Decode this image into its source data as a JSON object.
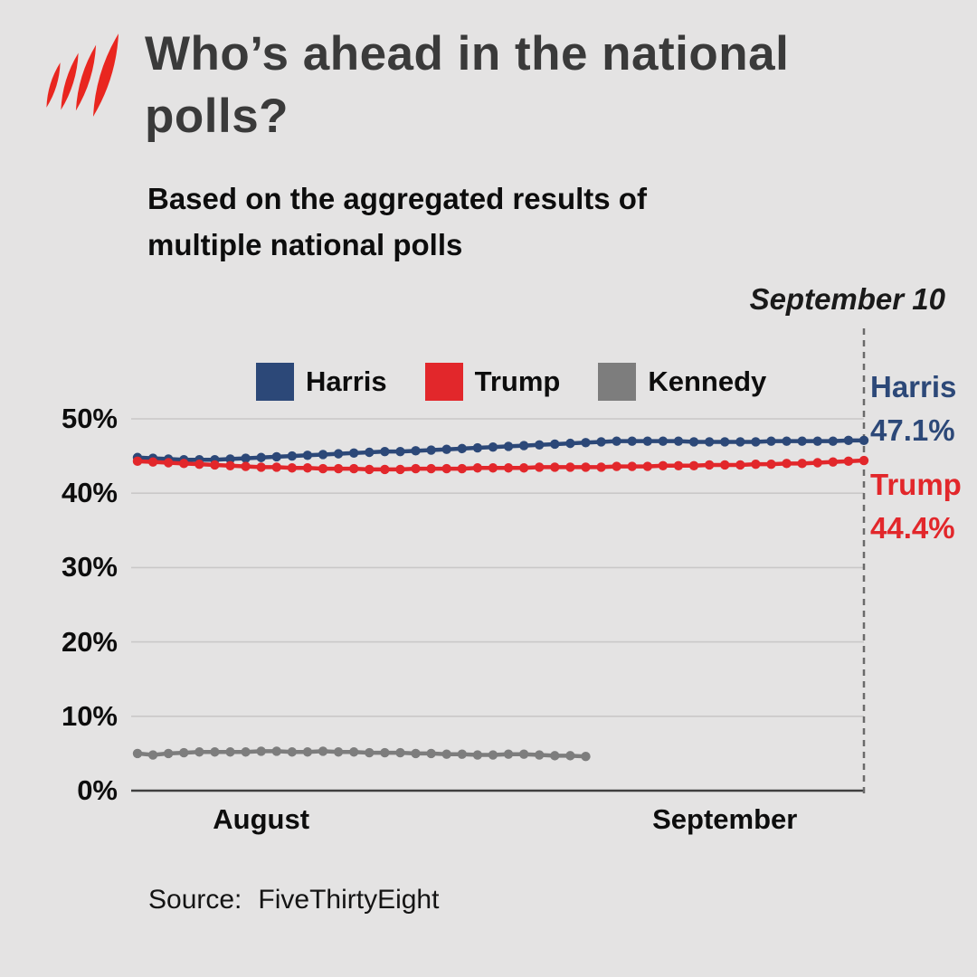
{
  "header": {
    "title": "Who’s ahead in the national polls?",
    "subtitle": "Based on the aggregated results of multiple national polls",
    "logo_color": "#e9261f"
  },
  "date_annotation": "September 10",
  "legend": [
    {
      "label": "Harris",
      "color": "#2c4878"
    },
    {
      "label": "Trump",
      "color": "#e2272b"
    },
    {
      "label": "Kennedy",
      "color": "#7d7d7d"
    }
  ],
  "end_labels": [
    {
      "id": "harris",
      "name": "Harris",
      "value": "47.1%",
      "color": "#2c4878"
    },
    {
      "id": "trump",
      "name": "Trump",
      "value": "44.4%",
      "color": "#e2272b"
    }
  ],
  "source": {
    "label": "Source:",
    "value": "FiveThirtyEight"
  },
  "chart_data": {
    "type": "line",
    "title": "Who’s ahead in the national polls?",
    "subtitle": "Based on the aggregated results of multiple national polls",
    "x_description": "Daily national polling averages, late July (day 0 = July 25) to September 10 (day 47)",
    "x_days_total": 47,
    "ylim": [
      0,
      50
    ],
    "grid": true,
    "legend_position": "top-center",
    "yticks": [
      {
        "value": 50,
        "label": "50%"
      },
      {
        "value": 40,
        "label": "40%"
      },
      {
        "value": 30,
        "label": "30%"
      },
      {
        "value": 20,
        "label": "20%"
      },
      {
        "value": 10,
        "label": "10%"
      },
      {
        "value": 0,
        "label": "0%"
      }
    ],
    "xticks": [
      {
        "day": 8,
        "label": "August"
      },
      {
        "day": 38,
        "label": "September"
      }
    ],
    "end_marker_day": 47,
    "end_marker_label": "September 10",
    "series": [
      {
        "name": "Harris",
        "color": "#2c4878",
        "start_day": 0,
        "end_value_label": "47.1%",
        "values": [
          44.8,
          44.7,
          44.6,
          44.5,
          44.5,
          44.5,
          44.6,
          44.7,
          44.8,
          44.9,
          45.0,
          45.1,
          45.2,
          45.3,
          45.4,
          45.5,
          45.6,
          45.6,
          45.7,
          45.8,
          45.9,
          46.0,
          46.1,
          46.2,
          46.3,
          46.4,
          46.5,
          46.6,
          46.7,
          46.8,
          46.9,
          47.0,
          47.0,
          47.0,
          47.0,
          47.0,
          46.9,
          46.9,
          46.9,
          46.9,
          46.9,
          47.0,
          47.0,
          47.0,
          47.0,
          47.0,
          47.1,
          47.1
        ]
      },
      {
        "name": "Trump",
        "color": "#e2272b",
        "start_day": 0,
        "end_value_label": "44.4%",
        "values": [
          44.3,
          44.2,
          44.1,
          44.0,
          43.9,
          43.8,
          43.7,
          43.6,
          43.5,
          43.5,
          43.4,
          43.4,
          43.3,
          43.3,
          43.3,
          43.2,
          43.2,
          43.2,
          43.3,
          43.3,
          43.3,
          43.3,
          43.4,
          43.4,
          43.4,
          43.4,
          43.5,
          43.5,
          43.5,
          43.5,
          43.5,
          43.6,
          43.6,
          43.6,
          43.7,
          43.7,
          43.7,
          43.8,
          43.8,
          43.8,
          43.9,
          43.9,
          44.0,
          44.0,
          44.1,
          44.2,
          44.3,
          44.4
        ]
      },
      {
        "name": "Kennedy",
        "color": "#7d7d7d",
        "start_day": 0,
        "values": [
          5.0,
          4.8,
          5.0,
          5.1,
          5.2,
          5.2,
          5.2,
          5.2,
          5.3,
          5.3,
          5.2,
          5.2,
          5.3,
          5.2,
          5.2,
          5.1,
          5.1,
          5.1,
          5.0,
          5.0,
          4.9,
          4.9,
          4.8,
          4.8,
          4.9,
          4.9,
          4.8,
          4.7,
          4.7,
          4.6
        ]
      }
    ],
    "styles": {
      "grid_color": "#c9c8c8",
      "axis_color": "#3f3f3f",
      "dashed_line_color": "#6a6a6a",
      "background": "#e4e3e3"
    }
  }
}
